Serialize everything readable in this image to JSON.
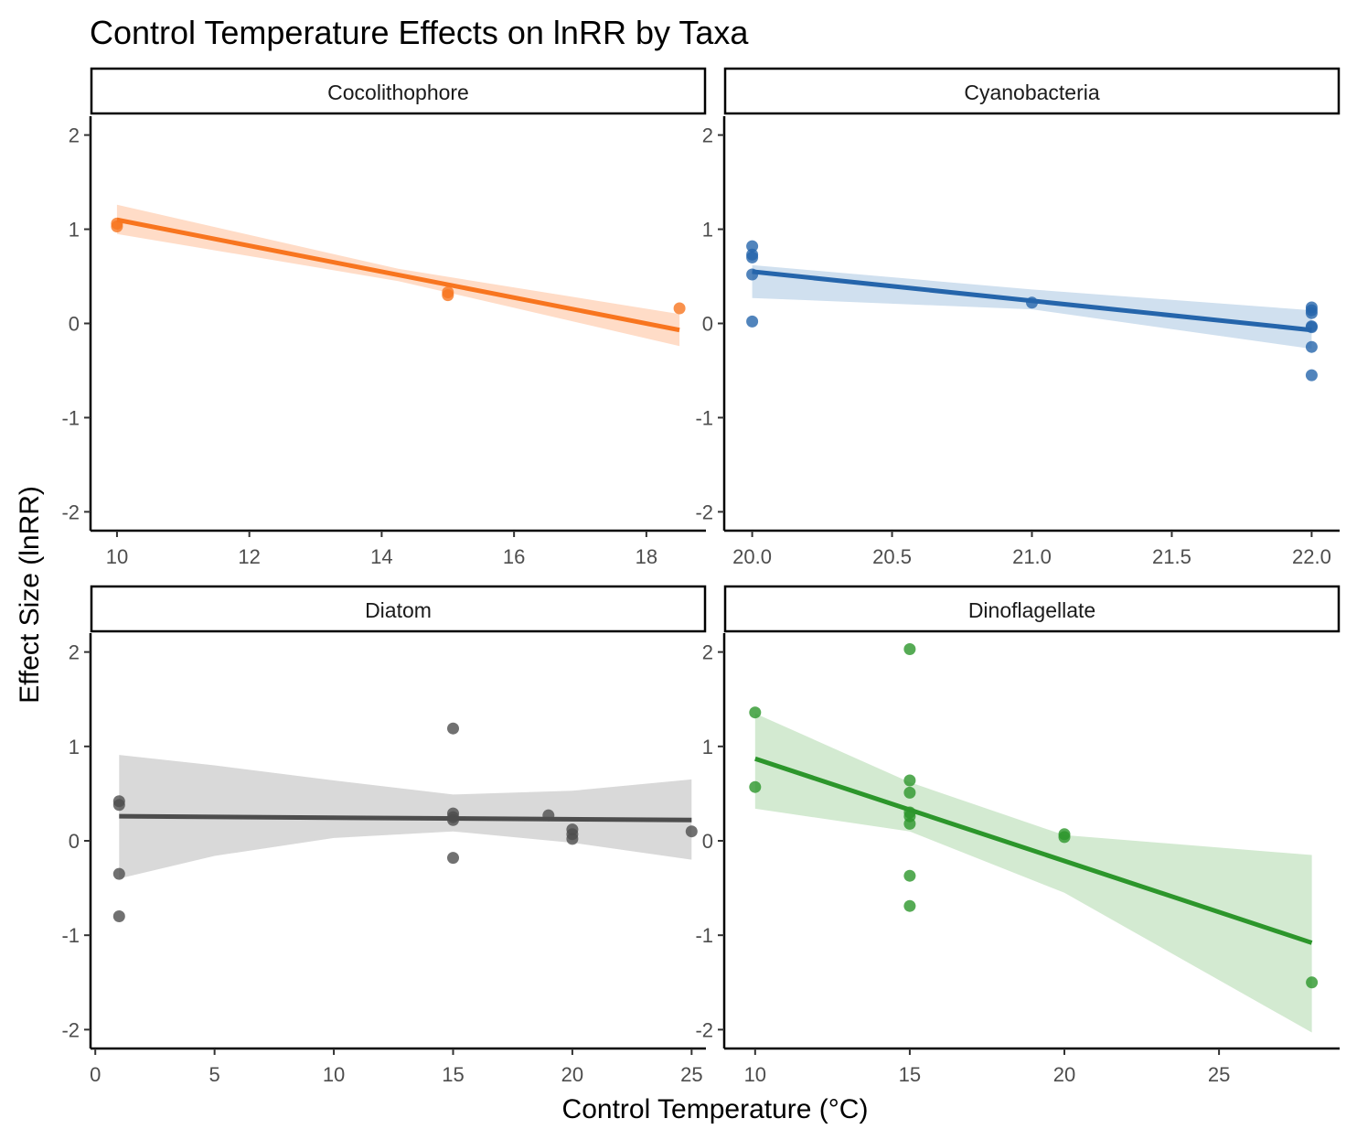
{
  "title": "Control Temperature Effects on lnRR by Taxa",
  "xlabel": "Control Temperature (°C)",
  "ylabel": "Effect Size (lnRR)",
  "chart_data": [
    {
      "type": "scatter",
      "panel": "Cocolithophore",
      "color": "#f8751f",
      "ribbon_color": "#ffdcc7",
      "xlim": [
        9.6,
        18.9
      ],
      "xticks": [
        10,
        12,
        14,
        16,
        18
      ],
      "xtick_labels": [
        "10",
        "12",
        "14",
        "16",
        "18"
      ],
      "ylim": [
        -2.2,
        2.2
      ],
      "yticks": [
        -2,
        -1,
        0,
        1,
        2
      ],
      "points": [
        [
          10,
          1.03
        ],
        [
          10,
          1.06
        ],
        [
          15,
          0.3
        ],
        [
          15,
          0.33
        ],
        [
          18.5,
          0.16
        ]
      ],
      "fit": {
        "x": [
          10,
          18.5
        ],
        "y": [
          1.1,
          -0.07
        ]
      },
      "ribbon": {
        "x": [
          10,
          14.25,
          18.5
        ],
        "lower": [
          0.95,
          0.45,
          -0.24
        ],
        "upper": [
          1.26,
          0.58,
          0.1
        ]
      }
    },
    {
      "type": "scatter",
      "panel": "Cyanobacteria",
      "color": "#2565ab",
      "ribbon_color": "#d0e0ef",
      "xlim": [
        19.9,
        22.1
      ],
      "xticks": [
        20.0,
        20.5,
        21.0,
        21.5,
        22.0
      ],
      "xtick_labels": [
        "20.0",
        "20.5",
        "21.0",
        "21.5",
        "22.0"
      ],
      "ylim": [
        -2.2,
        2.2
      ],
      "yticks": [
        -2,
        -1,
        0,
        1,
        2
      ],
      "points": [
        [
          20,
          0.82
        ],
        [
          20,
          0.73
        ],
        [
          20,
          0.7
        ],
        [
          20,
          0.52
        ],
        [
          20,
          0.02
        ],
        [
          21,
          0.22
        ],
        [
          22,
          0.17
        ],
        [
          22,
          0.14
        ],
        [
          22,
          0.11
        ],
        [
          22,
          -0.03
        ],
        [
          22,
          -0.04
        ],
        [
          22,
          -0.25
        ],
        [
          22,
          -0.55
        ]
      ],
      "fit": {
        "x": [
          20,
          22
        ],
        "y": [
          0.55,
          -0.07
        ]
      },
      "ribbon": {
        "x": [
          20,
          21,
          22
        ],
        "lower": [
          0.27,
          0.15,
          -0.27
        ],
        "upper": [
          0.62,
          0.36,
          0.14
        ]
      }
    },
    {
      "type": "scatter",
      "panel": "Diatom",
      "color": "#4d4d4d",
      "ribbon_color": "#d9d9d9",
      "xlim": [
        -0.2,
        25.6
      ],
      "xticks": [
        0,
        5,
        10,
        15,
        20,
        25
      ],
      "xtick_labels": [
        "0",
        "5",
        "10",
        "15",
        "20",
        "25"
      ],
      "ylim": [
        -2.2,
        2.2
      ],
      "yticks": [
        -2,
        -1,
        0,
        1,
        2
      ],
      "points": [
        [
          1,
          0.42
        ],
        [
          1,
          0.38
        ],
        [
          1,
          -0.35
        ],
        [
          1,
          -0.8
        ],
        [
          15,
          1.19
        ],
        [
          15,
          0.29
        ],
        [
          15,
          0.25
        ],
        [
          15,
          0.22
        ],
        [
          15,
          -0.18
        ],
        [
          19,
          0.27
        ],
        [
          20,
          0.12
        ],
        [
          20,
          0.07
        ],
        [
          20,
          0.02
        ],
        [
          25,
          0.1
        ]
      ],
      "fit": {
        "x": [
          1,
          25
        ],
        "y": [
          0.26,
          0.22
        ]
      },
      "ribbon": {
        "x": [
          1,
          5,
          10,
          15,
          20,
          25
        ],
        "lower": [
          -0.4,
          -0.16,
          0.03,
          0.1,
          -0.02,
          -0.2
        ],
        "upper": [
          0.91,
          0.8,
          0.64,
          0.49,
          0.53,
          0.65
        ]
      }
    },
    {
      "type": "scatter",
      "panel": "Dinoflagellate",
      "color": "#2c962b",
      "ribbon_color": "#d3ead1",
      "xlim": [
        9.0,
        28.9
      ],
      "xticks": [
        10,
        15,
        20,
        25
      ],
      "xtick_labels": [
        "10",
        "15",
        "20",
        "25"
      ],
      "ylim": [
        -2.2,
        2.2
      ],
      "yticks": [
        -2,
        -1,
        0,
        1,
        2
      ],
      "points": [
        [
          10,
          1.36
        ],
        [
          10,
          0.57
        ],
        [
          15,
          2.03
        ],
        [
          15,
          0.64
        ],
        [
          15,
          0.51
        ],
        [
          15,
          0.3
        ],
        [
          15,
          0.26
        ],
        [
          15,
          0.18
        ],
        [
          15,
          -0.37
        ],
        [
          15,
          -0.69
        ],
        [
          20,
          0.07
        ],
        [
          20,
          0.04
        ],
        [
          28,
          -1.5
        ]
      ],
      "fit": {
        "x": [
          10,
          28
        ],
        "y": [
          0.87,
          -1.08
        ]
      },
      "ribbon": {
        "x": [
          10,
          15,
          20,
          28
        ],
        "lower": [
          0.34,
          0.1,
          -0.55,
          -2.03
        ],
        "upper": [
          1.35,
          0.62,
          0.06,
          -0.15
        ]
      }
    }
  ]
}
